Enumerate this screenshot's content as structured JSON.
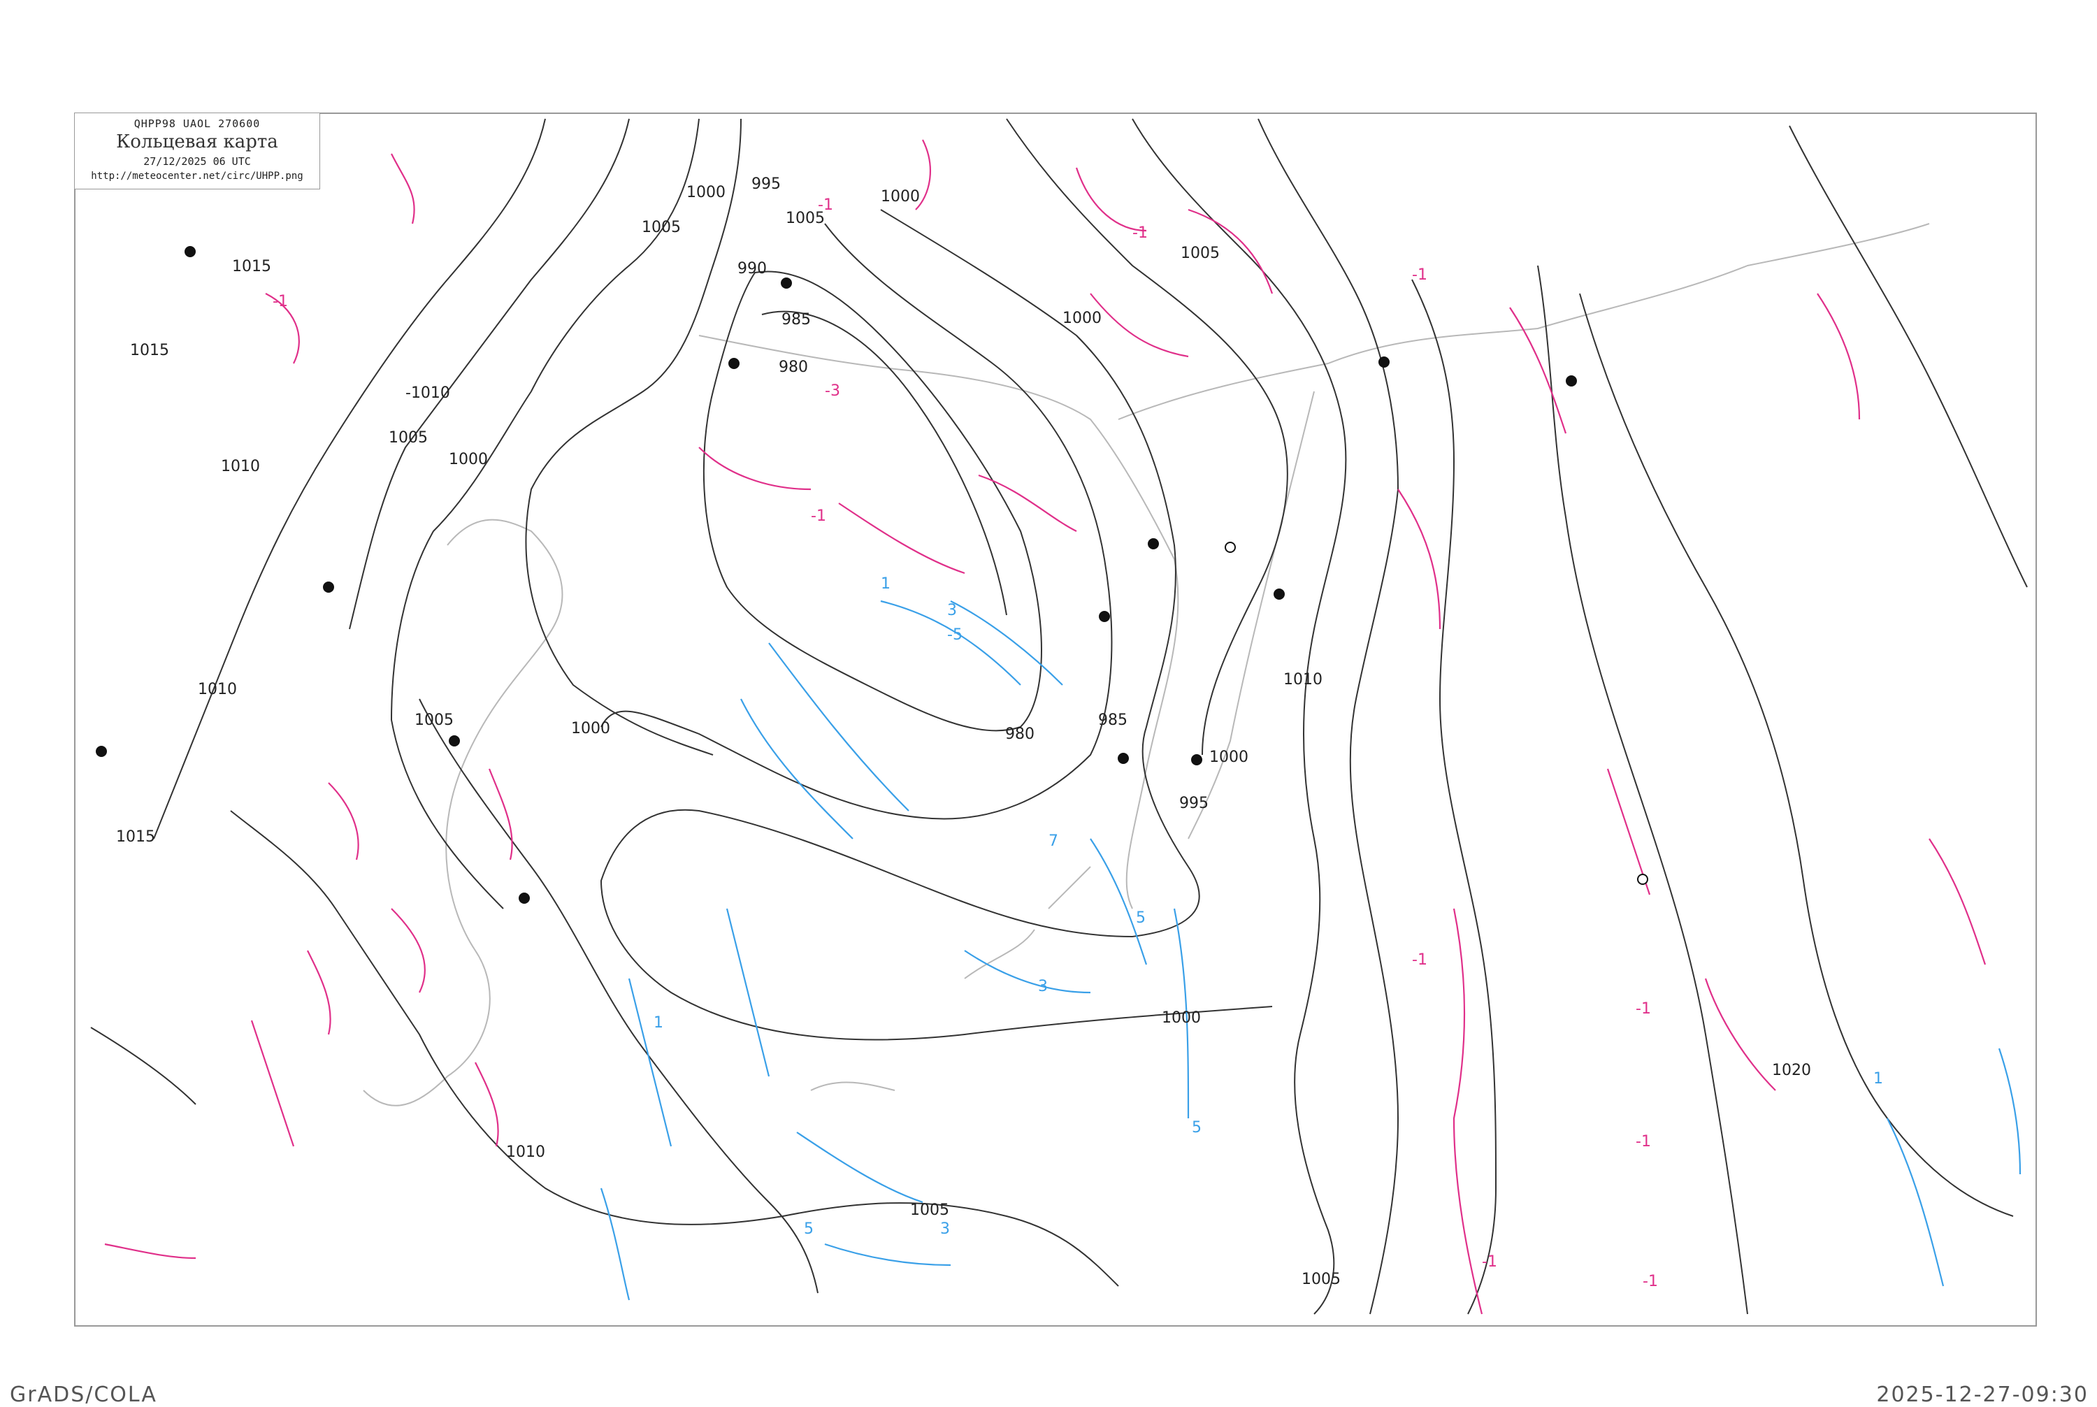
{
  "header": {
    "code_line": "QHPP98   UAOL   270600",
    "title": "Кольцевая карта",
    "datetime": "27/12/2025 06 UTC",
    "url": "http://meteocenter.net/circ/UHPP.png"
  },
  "footer": {
    "left": "GrADS/COLA",
    "right": "2025-12-27-09:30"
  },
  "colors": {
    "isobar": "#333333",
    "temp_negative": "#e0308a",
    "temp_positive": "#3aa0e8",
    "coastline": "#b0b0b0",
    "frame": "#999999"
  },
  "isobars": {
    "labels": [
      "1015",
      "1015",
      "-1010",
      "1005",
      "1000",
      "1010",
      "1010",
      "1015",
      "1005",
      "1000",
      "990",
      "985",
      "980",
      "995",
      "1005",
      "1000",
      "1005",
      "1000",
      "1005",
      "1000",
      "980",
      "985",
      "1000",
      "995",
      "1010",
      "1000",
      "1020",
      "1005",
      "1005",
      "1010"
    ]
  },
  "isotherms": {
    "labels": [
      "-1",
      "-1",
      "-1",
      "-3",
      "-1",
      "-1",
      "1",
      "3",
      "-5",
      "5",
      "7",
      "5",
      "3",
      "1",
      "5",
      "3",
      "-1",
      "-1",
      "-1",
      "1",
      "-1",
      "-1"
    ]
  }
}
